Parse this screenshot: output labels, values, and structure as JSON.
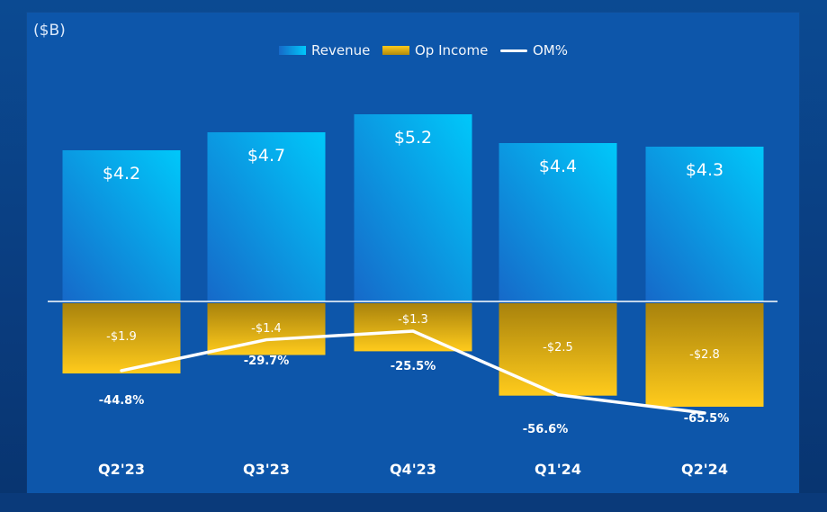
{
  "unit_label": "($B)",
  "legend": {
    "revenue": "Revenue",
    "op_income": "Op Income",
    "om": "OM%"
  },
  "colors": {
    "revenue_top": "#00C8FA",
    "revenue_bottom": "#1669C9",
    "op_income_top": "#B08A0E",
    "op_income_bottom": "#FFC91B",
    "om_line": "#FFFFFF",
    "panel": "#0D56AA"
  },
  "chart_data": {
    "type": "bar",
    "categories": [
      "Q2'23",
      "Q3'23",
      "Q4'23",
      "Q1'24",
      "Q2'24"
    ],
    "series": [
      {
        "name": "Revenue",
        "values": [
          4.2,
          4.7,
          5.2,
          4.4,
          4.3
        ],
        "labels": [
          "$4.2",
          "$4.7",
          "$5.2",
          "$4.4",
          "$4.3"
        ]
      },
      {
        "name": "Op Income",
        "values": [
          -1.9,
          -1.4,
          -1.3,
          -2.5,
          -2.8
        ],
        "labels": [
          "-$1.9",
          "-$1.4",
          "-$1.3",
          "-$2.5",
          "-$2.8"
        ]
      },
      {
        "name": "OM%",
        "type": "line",
        "values": [
          -44.8,
          -29.7,
          -25.5,
          -56.6,
          -65.5
        ],
        "labels": [
          "-44.8%",
          "-29.7%",
          "-25.5%",
          "-56.6%",
          "-65.5%"
        ]
      }
    ]
  }
}
